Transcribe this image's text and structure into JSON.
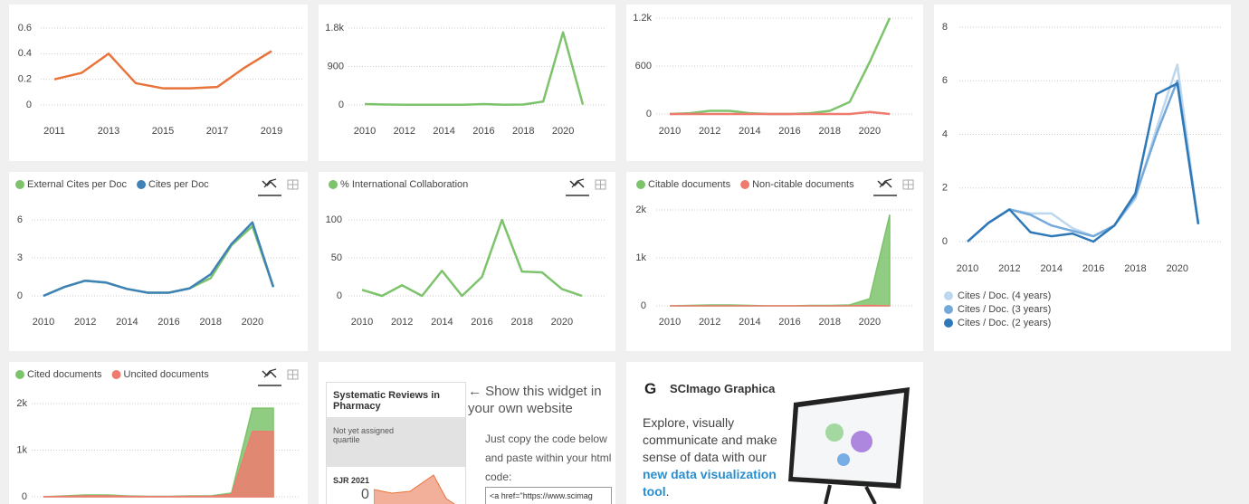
{
  "chart_data": [
    {
      "type": "line",
      "x": [
        2011,
        2012,
        2013,
        2014,
        2015,
        2016,
        2017,
        2018,
        2019
      ],
      "xlim": [
        2011,
        2019
      ],
      "xticks": [
        2011,
        2013,
        2015,
        2017,
        2019
      ],
      "ylim": [
        0,
        0.6
      ],
      "yticks": [
        0,
        0.2,
        0.4,
        0.6
      ],
      "grid": true,
      "series": [
        {
          "color": "#e8743b",
          "values": [
            0.2,
            0.25,
            0.4,
            0.17,
            0.13,
            0.13,
            0.14,
            0.29,
            0.42
          ]
        }
      ]
    },
    {
      "type": "line",
      "x": [
        2010,
        2011,
        2012,
        2013,
        2014,
        2015,
        2016,
        2017,
        2018,
        2019,
        2020,
        2021
      ],
      "xlim": [
        2010,
        2021
      ],
      "xticks": [
        2010,
        2012,
        2014,
        2016,
        2018,
        2020
      ],
      "ylim": [
        0,
        1800
      ],
      "yticks": [
        0,
        900,
        {
          "value": 1800,
          "label": "1.8k"
        }
      ],
      "grid": true,
      "series": [
        {
          "color": "#7dc36b",
          "values": [
            20,
            10,
            5,
            5,
            5,
            5,
            20,
            5,
            10,
            80,
            1700,
            10
          ]
        }
      ]
    },
    {
      "type": "line",
      "x": [
        2010,
        2011,
        2012,
        2013,
        2014,
        2015,
        2016,
        2017,
        2018,
        2019,
        2020,
        2021
      ],
      "xlim": [
        2010,
        2021
      ],
      "xticks": [
        2010,
        2012,
        2014,
        2016,
        2018,
        2020
      ],
      "ylim": [
        0,
        1200
      ],
      "yticks": [
        0,
        600,
        {
          "value": 1200,
          "label": "1.2k"
        }
      ],
      "grid": true,
      "series": [
        {
          "color": "#7dc36b",
          "values": [
            0,
            10,
            40,
            40,
            10,
            0,
            0,
            10,
            40,
            150,
            650,
            1200
          ]
        },
        {
          "color": "#ee7b6e",
          "values": [
            0,
            0,
            0,
            0,
            0,
            0,
            0,
            0,
            0,
            0,
            25,
            0
          ]
        }
      ]
    },
    {
      "type": "line",
      "x": [
        2010,
        2011,
        2012,
        2013,
        2014,
        2015,
        2016,
        2017,
        2018,
        2019,
        2020,
        2021
      ],
      "xlim": [
        2010,
        2021
      ],
      "xticks": [
        2010,
        2012,
        2014,
        2016,
        2018,
        2020
      ],
      "ylim": [
        0,
        8
      ],
      "yticks": [
        0,
        2,
        4,
        6,
        8
      ],
      "grid": true,
      "legend": "bottom",
      "series": [
        {
          "name": "Cites / Doc. (4 years)",
          "color": "#bcd7ee",
          "values": [
            0,
            0.7,
            1.2,
            1.05,
            1.05,
            0.5,
            0.2,
            0.6,
            1.6,
            4.2,
            6.6,
            0.65
          ]
        },
        {
          "name": "Cites / Doc. (3 years)",
          "color": "#74a9da",
          "values": [
            0,
            0.7,
            1.2,
            1.0,
            0.6,
            0.4,
            0.2,
            0.6,
            1.7,
            4.0,
            6.0,
            0.65
          ]
        },
        {
          "name": "Cites / Doc. (2 years)",
          "color": "#2f78b8",
          "values": [
            0,
            0.7,
            1.2,
            0.35,
            0.2,
            0.3,
            0,
            0.6,
            1.8,
            5.5,
            5.9,
            0.65
          ]
        }
      ]
    },
    {
      "type": "line",
      "x": [
        2010,
        2011,
        2012,
        2013,
        2014,
        2015,
        2016,
        2017,
        2018,
        2019,
        2020,
        2021
      ],
      "xlim": [
        2010,
        2021
      ],
      "xticks": [
        2010,
        2012,
        2014,
        2016,
        2018,
        2020
      ],
      "ylim": [
        0,
        6
      ],
      "yticks": [
        0,
        3,
        6
      ],
      "grid": true,
      "legend": "top",
      "series": [
        {
          "name": "External Cites per Doc",
          "color": "#7dc36b",
          "values": [
            0,
            0.7,
            1.2,
            1.05,
            0.55,
            0.25,
            0.25,
            0.6,
            1.4,
            4.0,
            5.5,
            0.7
          ]
        },
        {
          "name": "Cites per Doc",
          "color": "#3f82b8",
          "values": [
            0,
            0.7,
            1.2,
            1.05,
            0.55,
            0.25,
            0.25,
            0.6,
            1.7,
            4.1,
            5.8,
            0.7
          ]
        }
      ]
    },
    {
      "type": "line",
      "x": [
        2010,
        2011,
        2012,
        2013,
        2014,
        2015,
        2016,
        2017,
        2018,
        2019,
        2020,
        2021
      ],
      "xlim": [
        2010,
        2021
      ],
      "xticks": [
        2010,
        2012,
        2014,
        2016,
        2018,
        2020
      ],
      "ylim": [
        0,
        100
      ],
      "yticks": [
        0,
        50,
        100
      ],
      "grid": true,
      "legend": "top",
      "series": [
        {
          "name": "% International Collaboration",
          "color": "#7dc36b",
          "values": [
            8,
            0,
            14,
            0,
            33,
            0,
            25,
            100,
            32,
            31,
            9,
            0
          ]
        }
      ]
    },
    {
      "type": "area",
      "x": [
        2010,
        2011,
        2012,
        2013,
        2014,
        2015,
        2016,
        2017,
        2018,
        2019,
        2020,
        2021
      ],
      "xlim": [
        2010,
        2021
      ],
      "xticks": [
        2010,
        2012,
        2014,
        2016,
        2018,
        2020
      ],
      "ylim": [
        0,
        2000
      ],
      "yticks": [
        0,
        {
          "value": 1000,
          "label": "1k"
        },
        {
          "value": 2000,
          "label": "2k"
        }
      ],
      "grid": true,
      "legend": "top",
      "series": [
        {
          "name": "Citable documents",
          "color": "#7dc36b",
          "values": [
            0,
            10,
            20,
            20,
            10,
            0,
            0,
            10,
            10,
            20,
            150,
            1900
          ]
        },
        {
          "name": "Non-citable documents",
          "color": "#ee7b6e",
          "values": [
            0,
            0,
            0,
            0,
            0,
            0,
            0,
            0,
            0,
            0,
            10,
            0
          ]
        }
      ]
    },
    {
      "type": "area",
      "x": [
        2010,
        2011,
        2012,
        2013,
        2014,
        2015,
        2016,
        2017,
        2018,
        2019,
        2020,
        2021
      ],
      "xlim": [
        2010,
        2021
      ],
      "ylim": [
        0,
        2000
      ],
      "yticks": [
        0,
        {
          "value": 1000,
          "label": "1k"
        },
        {
          "value": 2000,
          "label": "2k"
        }
      ],
      "grid": true,
      "legend": "top",
      "series": [
        {
          "name": "Cited documents",
          "color": "#7dc36b",
          "values": [
            0,
            20,
            40,
            40,
            20,
            10,
            10,
            20,
            20,
            80,
            1900,
            1900
          ]
        },
        {
          "name": "Uncited documents",
          "color": "#ee7b6e",
          "values": [
            0,
            10,
            20,
            20,
            10,
            5,
            5,
            10,
            10,
            50,
            1400,
            1400
          ]
        }
      ]
    }
  ],
  "widget": {
    "journal": "Systematic Reviews in Pharmacy",
    "quartile": "Not yet assigned quartile",
    "sjr_label": "SJR 2021",
    "sjr_value": "0",
    "heading": "← Show this widget in your own website",
    "instructions": "Just copy the code below and paste within your html code:",
    "code": "<a href=\"https://www.scimag"
  },
  "graphica": {
    "title": "SCImago Graphica",
    "text": "Explore, visually communicate and make sense of data with our ",
    "link": "new data visualization tool",
    "end": "."
  }
}
